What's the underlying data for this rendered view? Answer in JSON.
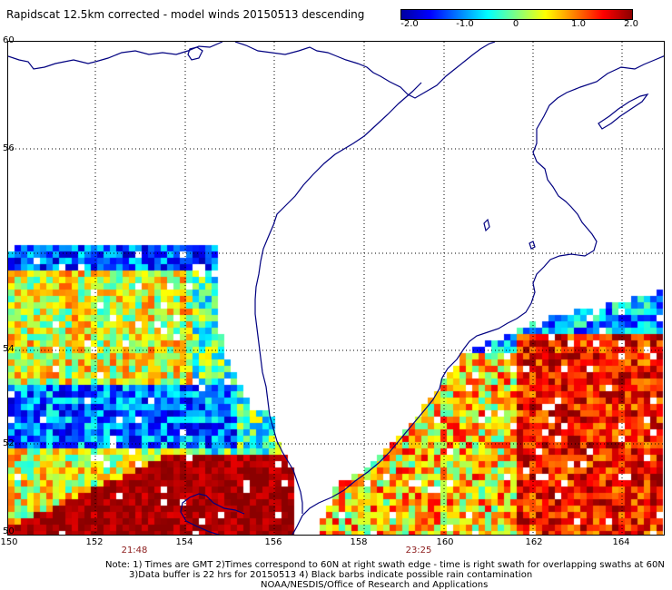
{
  "title": "Rapidscat 12.5km corrected - model winds 20150513 descending",
  "colorbar": {
    "labels": [
      "-2.0",
      "-1.0",
      "0",
      "1.0",
      "2.0"
    ],
    "values": [
      -2.0,
      -1.0,
      0,
      1.0,
      2.0
    ],
    "colors": [
      "#0000a0",
      "#0000ff",
      "#0080ff",
      "#00ffff",
      "#80ff80",
      "#ffff00",
      "#ff8000",
      "#ff0000",
      "#8b0000"
    ]
  },
  "map": {
    "lat_labels": [
      "60",
      "56",
      "54",
      "52",
      "50"
    ],
    "lon_labels": [
      "150",
      "152",
      "154",
      "156",
      "158",
      "160",
      "162",
      "164"
    ],
    "lat_range": [
      50,
      60
    ],
    "lon_range": [
      150,
      165
    ],
    "gridlines": "dotted",
    "coastline_color": "#000080"
  },
  "times": [
    "21:48",
    "23:25"
  ],
  "notes": [
    "Note: 1) Times are GMT 2)Times correspond to 60N at right swath edge - time is right swath for overlapping swaths at 60N",
    "3)Data buffer is 22 hrs for 20150513 4) Black barbs indicate possible rain contamination",
    "NOAA/NESDIS/Office of Research and Applications"
  ]
}
